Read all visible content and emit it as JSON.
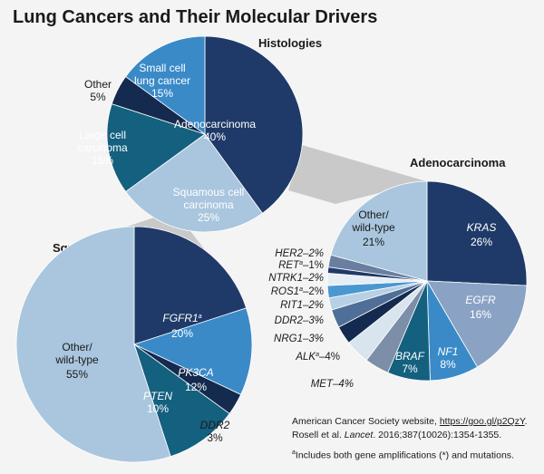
{
  "title": "Lung Cancers and Their Molecular Drivers",
  "chart_data": [
    {
      "type": "pie",
      "title": "Histologies",
      "slices": [
        {
          "label": "Adenocarcinoma",
          "value": 40,
          "value_label": "40%",
          "color": "#1f3a68",
          "text_color": "#ffffff",
          "italic": false
        },
        {
          "label": "Squamous cell carcinoma",
          "value": 25,
          "value_label": "25%",
          "color": "#a9c6de",
          "text_color": "#ffffff",
          "italic": false
        },
        {
          "label": "Large cell carcinoma",
          "value": 15,
          "value_label": "15%",
          "color": "#14607f",
          "text_color": "#ffffff",
          "italic": false
        },
        {
          "label": "Other",
          "value": 5,
          "value_label": "5%",
          "color": "#142a4e",
          "text_color": "#1a1a1a",
          "italic": false
        },
        {
          "label": "Small cell lung cancer",
          "value": 15,
          "value_label": "15%",
          "color": "#3a8ac8",
          "text_color": "#ffffff",
          "italic": false
        }
      ]
    },
    {
      "type": "pie",
      "title": "Adenocarcinoma",
      "slices": [
        {
          "label": "KRAS",
          "value": 26,
          "value_label": "26%",
          "color": "#1f3a68",
          "text_color": "#ffffff",
          "italic": true
        },
        {
          "label": "EGFR",
          "value": 16,
          "value_label": "16%",
          "color": "#8aa2c3",
          "text_color": "#ffffff",
          "italic": true
        },
        {
          "label": "NF1",
          "value": 8,
          "value_label": "8%",
          "color": "#3a8ac8",
          "text_color": "#ffffff",
          "italic": true
        },
        {
          "label": "BRAF",
          "value": 7,
          "value_label": "7%",
          "color": "#14607f",
          "text_color": "#ffffff",
          "italic": true
        },
        {
          "label": "MET–4%",
          "value": 4,
          "value_label": "",
          "color": "#7c8ea8",
          "text_color": "#1a1a1a",
          "italic": true
        },
        {
          "label": "ALK",
          "sup": "a",
          "suffix": "–4%",
          "value": 4,
          "value_label": "",
          "color": "#d8e4ee",
          "text_color": "#1a1a1a",
          "italic": true
        },
        {
          "label": "NRG1–3%",
          "value": 3,
          "value_label": "",
          "color": "#142a4e",
          "text_color": "#1a1a1a",
          "italic": true
        },
        {
          "label": "DDR2–3%",
          "value": 3,
          "value_label": "",
          "color": "#4f6f99",
          "text_color": "#1a1a1a",
          "italic": true
        },
        {
          "label": "RIT1–2%",
          "value": 2,
          "value_label": "",
          "color": "#b7d0e5",
          "text_color": "#1a1a1a",
          "italic": true
        },
        {
          "label": "ROS1",
          "sup": "a",
          "suffix": "–2%",
          "value": 2,
          "value_label": "",
          "color": "#4a98d0",
          "text_color": "#1a1a1a",
          "italic": true
        },
        {
          "label": "NTRK1–2%",
          "value": 2,
          "value_label": "",
          "color": "#e6eef5",
          "text_color": "#1a1a1a",
          "italic": true
        },
        {
          "label": "RET",
          "sup": "a",
          "suffix": "–1%",
          "value": 1,
          "value_label": "",
          "color": "#1f3a68",
          "text_color": "#1a1a1a",
          "italic": true
        },
        {
          "label": "HER2–2%",
          "value": 2,
          "value_label": "",
          "color": "#6a7fa0",
          "text_color": "#1a1a1a",
          "italic": true
        },
        {
          "label": "Other/ wild-type",
          "value": 21,
          "value_label": "21%",
          "color": "#a9c6de",
          "text_color": "#1a1a1a",
          "italic": false
        }
      ]
    },
    {
      "type": "pie",
      "title": "Squamous",
      "slices": [
        {
          "label": "FGFR1",
          "sup": "a",
          "value": 20,
          "value_label": "20%",
          "color": "#1f3a68",
          "text_color": "#ffffff",
          "italic": true
        },
        {
          "label": "PK3CA",
          "value": 12,
          "value_label": "12%",
          "color": "#3a8ac8",
          "text_color": "#ffffff",
          "italic": true
        },
        {
          "label": "DDR2",
          "value": 3,
          "value_label": "3%",
          "color": "#142a4e",
          "text_color": "#1a1a1a",
          "italic": true
        },
        {
          "label": "PTEN",
          "value": 10,
          "value_label": "10%",
          "color": "#14607f",
          "text_color": "#ffffff",
          "italic": true
        },
        {
          "label": "Other/ wild-type",
          "value": 55,
          "value_label": "55%",
          "color": "#a9c6de",
          "text_color": "#1a1a1a",
          "italic": false
        }
      ]
    }
  ],
  "source": {
    "line1_prefix": "American Cancer Society website, ",
    "link": "https://goo.gl/p2QzY",
    "line1_suffix": ".",
    "line2_prefix": "Rosell et al. ",
    "journal": "Lancet",
    "line2_suffix": ". 2016;387(10026):1354-1355.",
    "note_sup": "a",
    "note": "Includes both gene amplifications (*) and mutations."
  }
}
